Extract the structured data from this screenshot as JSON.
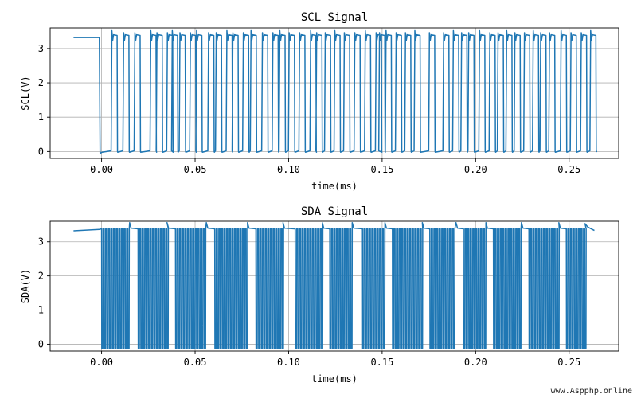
{
  "chart_data": [
    {
      "type": "line",
      "title": "SCL Signal",
      "xlabel": "time(ms)",
      "ylabel": "SCL(V)",
      "xlim": [
        -0.0275,
        0.2765
      ],
      "ylim": [
        -0.2,
        3.6
      ],
      "xticks": [
        0.0,
        0.05,
        0.1,
        0.15,
        0.2,
        0.25
      ],
      "xtick_labels": [
        "0.00",
        "0.05",
        "0.10",
        "0.15",
        "0.20",
        "0.25"
      ],
      "yticks": [
        0,
        1,
        2,
        3
      ],
      "ytick_labels": [
        "0",
        "1",
        "2",
        "3"
      ],
      "grid": true,
      "color": "#1f77b4",
      "signal": {
        "idle_start": -0.015,
        "idle_end": -0.0012,
        "idle_level": 3.32,
        "pulse_starts": [
          0.0055,
          0.0118,
          0.0178,
          0.0263,
          0.0296,
          0.0352,
          0.0378,
          0.0419,
          0.0475,
          0.0508,
          0.0572,
          0.0613,
          0.067,
          0.0702,
          0.0758,
          0.0799,
          0.086,
          0.0916,
          0.0953,
          0.1003,
          0.1059,
          0.1118,
          0.115,
          0.1196,
          0.1247,
          0.1298,
          0.1354,
          0.141,
          0.1468,
          0.1486,
          0.1521,
          0.1575,
          0.1625,
          0.1675,
          0.1753,
          0.1829,
          0.1881,
          0.1925,
          0.1963,
          0.2021,
          0.2076,
          0.212,
          0.2166,
          0.221,
          0.2261,
          0.2308,
          0.2348,
          0.2395,
          0.2457,
          0.251,
          0.2565,
          0.2615
        ],
        "pulse_width": 0.0028,
        "high_level": 3.38,
        "low_level": 0.0,
        "end": 0.265
      }
    },
    {
      "type": "line",
      "title": "SDA Signal",
      "xlabel": "time(ms)",
      "ylabel": "SDA(V)",
      "xlim": [
        -0.0275,
        0.2765
      ],
      "ylim": [
        -0.2,
        3.6
      ],
      "xticks": [
        0.0,
        0.05,
        0.1,
        0.15,
        0.2,
        0.25
      ],
      "xtick_labels": [
        "0.00",
        "0.05",
        "0.10",
        "0.15",
        "0.20",
        "0.25"
      ],
      "yticks": [
        0,
        1,
        2,
        3
      ],
      "ytick_labels": [
        "0",
        "1",
        "2",
        "3"
      ],
      "grid": true,
      "color": "#1f77b4",
      "signal": {
        "idle_start": -0.015,
        "idle_end": -0.0012,
        "idle_level": 3.32,
        "bursts": [
          [
            0.0,
            0.015
          ],
          [
            0.0195,
            0.035
          ],
          [
            0.0395,
            0.056
          ],
          [
            0.0605,
            0.078
          ],
          [
            0.0825,
            0.097
          ],
          [
            0.1035,
            0.118
          ],
          [
            0.122,
            0.134
          ],
          [
            0.1395,
            0.1515
          ],
          [
            0.1555,
            0.1715
          ],
          [
            0.1755,
            0.1895
          ],
          [
            0.1935,
            0.2055
          ],
          [
            0.2095,
            0.2245
          ],
          [
            0.2285,
            0.2445
          ],
          [
            0.2485,
            0.2585
          ]
        ],
        "burst_period": 0.0014,
        "high_level": 3.38,
        "low_level": -0.12,
        "end": 0.2635
      }
    }
  ],
  "watermark": "www.Aspphp.online"
}
